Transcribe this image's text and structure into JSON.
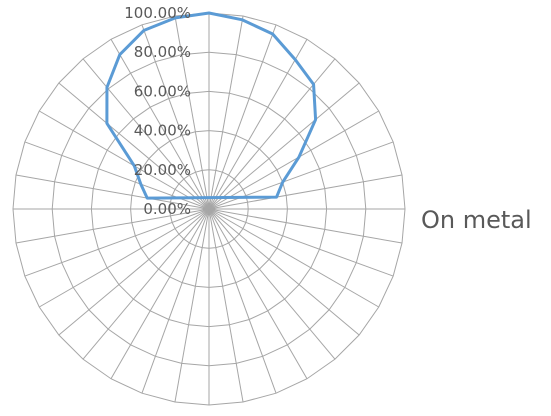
{
  "chart_data": {
    "type": "radar",
    "title": "",
    "num_spokes": 36,
    "r_range": [
      0,
      1
    ],
    "r_ticks": [
      "0.00%",
      "20.00%",
      "40.00%",
      "60.00%",
      "80.00%",
      "100.00%"
    ],
    "grid": true,
    "legend": {
      "position": "right"
    },
    "series": [
      {
        "name": "On metal",
        "color": "#5b9bd5",
        "points": [
          {
            "angle_deg": 0,
            "value": 1.0
          },
          {
            "angle_deg": 10,
            "value": 0.98
          },
          {
            "angle_deg": 20,
            "value": 0.95
          },
          {
            "angle_deg": 30,
            "value": 0.88
          },
          {
            "angle_deg": 40,
            "value": 0.83
          },
          {
            "angle_deg": 50,
            "value": 0.71
          },
          {
            "angle_deg": 60,
            "value": 0.53
          },
          {
            "angle_deg": 70,
            "value": 0.4
          },
          {
            "angle_deg": 80,
            "value": 0.35
          },
          {
            "angle_deg": 280,
            "value": 0.32
          },
          {
            "angle_deg": 290,
            "value": 0.37
          },
          {
            "angle_deg": 300,
            "value": 0.44
          },
          {
            "angle_deg": 310,
            "value": 0.68
          },
          {
            "angle_deg": 320,
            "value": 0.81
          },
          {
            "angle_deg": 330,
            "value": 0.91
          },
          {
            "angle_deg": 340,
            "value": 0.97
          },
          {
            "angle_deg": 350,
            "value": 0.99
          }
        ]
      }
    ]
  }
}
